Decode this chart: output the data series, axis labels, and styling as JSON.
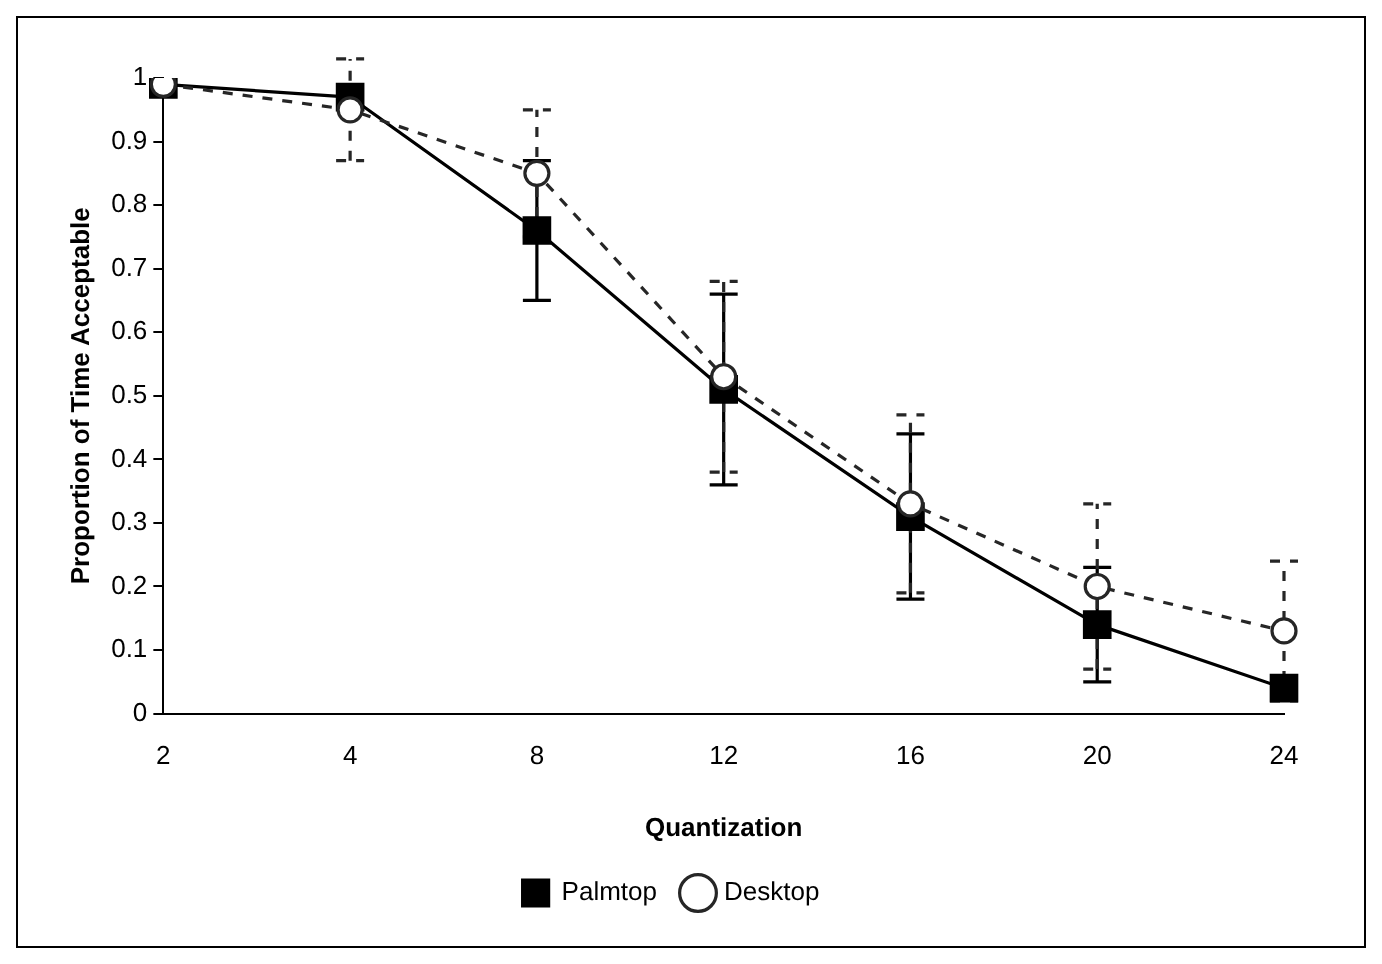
{
  "chart_data": {
    "type": "line",
    "xlabel": "Quantization",
    "ylabel": "Proportion of Time Acceptable",
    "categories": [
      "2",
      "4",
      "8",
      "12",
      "16",
      "20",
      "24"
    ],
    "series": [
      {
        "name": "Palmtop",
        "color": "#000000",
        "marker": "square",
        "line_style": "solid",
        "values": [
          0.99,
          0.97,
          0.76,
          0.51,
          0.31,
          0.14,
          0.04
        ],
        "errors": [
          null,
          null,
          0.11,
          0.15,
          0.13,
          0.09,
          null
        ]
      },
      {
        "name": "Desktop",
        "color": "#262626",
        "marker": "circle",
        "line_style": "dashed",
        "values": [
          0.99,
          0.95,
          0.85,
          0.53,
          0.33,
          0.2,
          0.13
        ],
        "errors": [
          null,
          0.08,
          0.1,
          0.15,
          0.14,
          0.13,
          0.11
        ]
      }
    ],
    "ylim": [
      0,
      1
    ],
    "yticks": [
      0,
      0.1,
      0.2,
      0.3,
      0.4,
      0.5,
      0.6,
      0.7,
      0.8,
      0.9,
      1
    ],
    "grid": false,
    "legend": "bottom"
  }
}
